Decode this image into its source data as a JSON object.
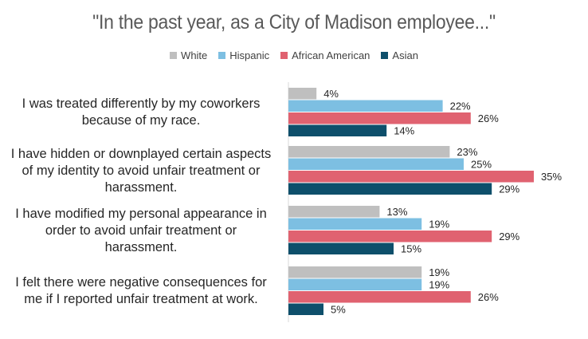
{
  "chart_data": {
    "type": "bar",
    "orientation": "horizontal",
    "title": "\"In the past year, as a City of Madison employee...\"",
    "categories": [
      "I was treated differently by my coworkers because of my race.",
      "I have hidden or downplayed certain aspects of my identity to avoid unfair treatment or harassment.",
      "I have modified my personal appearance in order to avoid unfair treatment or harassment.",
      "I felt there were negative consequences for me if I reported unfair treatment at work."
    ],
    "series": [
      {
        "name": "White",
        "color": "#BFBFBF",
        "values": [
          4,
          23,
          13,
          19
        ]
      },
      {
        "name": "Hispanic",
        "color": "#7DBFE2",
        "values": [
          22,
          25,
          19,
          19
        ]
      },
      {
        "name": "African American",
        "color": "#E06270",
        "values": [
          26,
          35,
          29,
          26
        ]
      },
      {
        "name": "Asian",
        "color": "#0E4F6B",
        "values": [
          14,
          29,
          15,
          5
        ]
      }
    ],
    "value_suffix": "%",
    "xlim": [
      0,
      40
    ],
    "legend_position": "top",
    "grid": false
  }
}
